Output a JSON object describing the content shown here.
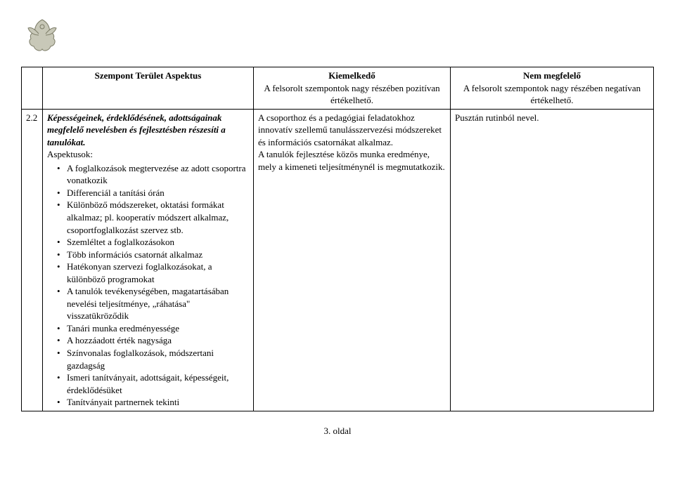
{
  "logo": {
    "name": "angel-figure-logo"
  },
  "header": {
    "aspect_title": "Szempont Terület Aspektus",
    "good_title": "Kiemelkedő",
    "good_sub": "A felsorolt szempontok nagy részében pozitívan értékelhető.",
    "bad_title": "Nem megfelelő",
    "bad_sub": "A felsorolt szempontok nagy részében negatívan értékelhető."
  },
  "row": {
    "num": "2.2",
    "title": "Képességeinek, érdeklődésének, adottságainak megfelelő nevelésben és fejlesztésben részesíti a tanulókat.",
    "aspektusok_label": "Aspektusok:",
    "bullets": [
      "A foglalkozások megtervezése az adott csoportra vonatkozik",
      "Differenciál a tanítási órán",
      "Különböző módszereket, oktatási formákat alkalmaz; pl. kooperatív módszert alkalmaz, csoportfoglalkozást szervez stb.",
      "Szemléltet a foglalkozásokon",
      "Több információs csatornát alkalmaz",
      "Hatékonyan szervezi foglalkozásokat, a különböző programokat",
      "A tanulók tevékenységében, magatartásában nevelési teljesítménye, „ráhatása\" visszatükröződik",
      "Tanári munka eredményessége",
      "A hozzáadott érték nagysága",
      "Színvonalas foglalkozások, módszertani gazdagság",
      "Ismeri tanítványait, adottságait, képességeit, érdeklődésüket",
      "Tanítványait partnernek tekinti"
    ],
    "good_text": "A csoporthoz és a pedagógiai feladatokhoz innovatív szellemű tanulásszervezési módszereket és információs csatornákat alkalmaz.\nA tanulók fejlesztése közös munka eredménye, mely a kimeneti teljesítménynél is megmutatkozik.",
    "bad_text": "Pusztán rutinból nevel."
  },
  "page_number": "3. oldal"
}
